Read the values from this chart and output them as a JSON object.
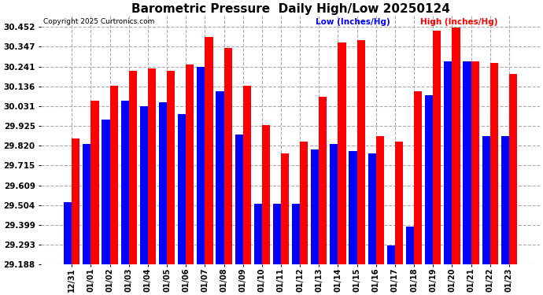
{
  "title": "Barometric Pressure  Daily High/Low 20250124",
  "copyright": "Copyright 2025 Curtronics.com",
  "legend_low": "Low (Inches/Hg)",
  "legend_high": "High (Inches/Hg)",
  "dates": [
    "12/31",
    "01/01",
    "01/02",
    "01/03",
    "01/04",
    "01/05",
    "01/06",
    "01/07",
    "01/08",
    "01/09",
    "01/10",
    "01/11",
    "01/12",
    "01/13",
    "01/14",
    "01/15",
    "01/16",
    "01/17",
    "01/18",
    "01/19",
    "01/20",
    "01/21",
    "01/22",
    "01/23"
  ],
  "highs": [
    29.86,
    30.06,
    30.14,
    30.22,
    30.23,
    30.22,
    30.25,
    30.4,
    30.34,
    30.14,
    29.93,
    29.78,
    29.84,
    30.08,
    30.37,
    30.38,
    29.87,
    29.84,
    30.11,
    30.43,
    30.45,
    30.27,
    30.26,
    30.2
  ],
  "lows": [
    29.52,
    29.83,
    29.96,
    30.06,
    30.03,
    30.05,
    29.99,
    30.24,
    30.11,
    29.88,
    29.51,
    29.51,
    29.51,
    29.8,
    29.83,
    29.79,
    29.78,
    29.29,
    29.39,
    30.09,
    30.27,
    30.27,
    29.87,
    29.87
  ],
  "ylim_min": 29.188,
  "ylim_max": 30.51,
  "yticks": [
    29.188,
    29.293,
    29.399,
    29.504,
    29.609,
    29.715,
    29.82,
    29.925,
    30.031,
    30.136,
    30.241,
    30.347,
    30.452
  ],
  "bar_width": 0.42,
  "high_color": "#FF0000",
  "low_color": "#0000FF",
  "bg_color": "#FFFFFF",
  "grid_color": "#AAAAAA",
  "title_fontsize": 11,
  "tick_fontsize": 7,
  "ytick_fontsize": 7.5
}
